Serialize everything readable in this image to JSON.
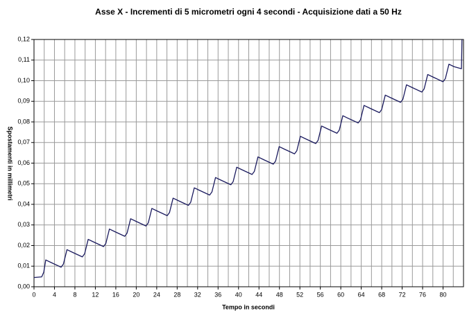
{
  "chart_data": {
    "type": "line",
    "title": "Asse X - Incrementi di 5 micrometri ogni 4 secondi - Acquisizione dati a 50 Hz",
    "x_label": "Tempo in secondi",
    "y_label": "Spostamenti in millimetri",
    "x": [
      0,
      1.5,
      1.9,
      2.3,
      3.3,
      5.3,
      5.75,
      6.45,
      7.45,
      9.45,
      9.9,
      10.6,
      11.6,
      13.6,
      14.05,
      14.75,
      15.75,
      17.75,
      18.2,
      18.9,
      19.9,
      21.9,
      22.35,
      23.05,
      24.05,
      26.05,
      26.5,
      27.2,
      28.2,
      30.2,
      30.65,
      31.35,
      32.35,
      34.35,
      34.8,
      35.5,
      36.5,
      38.5,
      38.95,
      39.65,
      40.65,
      42.65,
      43.1,
      43.8,
      44.8,
      46.8,
      47.25,
      47.95,
      48.95,
      50.95,
      51.4,
      52.1,
      53.1,
      55.1,
      55.55,
      56.25,
      57.25,
      59.25,
      59.7,
      60.4,
      61.4,
      63.4,
      63.85,
      64.55,
      65.55,
      67.55,
      68.0,
      68.7,
      69.7,
      71.7,
      72.15,
      72.85,
      73.85,
      75.85,
      76.3,
      77.0,
      78.0,
      80.0,
      80.45,
      81.15,
      82.15,
      83.6,
      83.7
    ],
    "series": [
      {
        "name": "Asse X",
        "color": "#1a1a5e",
        "values": [
          0.0045,
          0.0048,
          0.007,
          0.013,
          0.0118,
          0.0095,
          0.011,
          0.018,
          0.0168,
          0.0145,
          0.016,
          0.023,
          0.0218,
          0.0195,
          0.021,
          0.028,
          0.0268,
          0.0245,
          0.026,
          0.033,
          0.0318,
          0.0295,
          0.031,
          0.038,
          0.0368,
          0.0345,
          0.036,
          0.043,
          0.0418,
          0.0395,
          0.041,
          0.048,
          0.0468,
          0.0445,
          0.046,
          0.053,
          0.0518,
          0.0495,
          0.051,
          0.058,
          0.0568,
          0.0545,
          0.056,
          0.063,
          0.0618,
          0.0595,
          0.061,
          0.068,
          0.0668,
          0.0645,
          0.066,
          0.073,
          0.0718,
          0.0695,
          0.071,
          0.078,
          0.0768,
          0.0745,
          0.076,
          0.083,
          0.0818,
          0.0795,
          0.081,
          0.088,
          0.0868,
          0.0845,
          0.086,
          0.093,
          0.0918,
          0.0895,
          0.091,
          0.098,
          0.0968,
          0.0945,
          0.096,
          0.103,
          0.1018,
          0.0995,
          0.101,
          0.108,
          0.1068,
          0.1058,
          0.12
        ]
      }
    ],
    "xlim": [
      0,
      84
    ],
    "xticks": [
      0,
      4,
      8,
      12,
      16,
      20,
      24,
      28,
      32,
      36,
      40,
      44,
      48,
      52,
      56,
      60,
      64,
      68,
      72,
      76,
      80
    ],
    "xminorticks": [
      2,
      6,
      10,
      14,
      18,
      22,
      26,
      30,
      34,
      38,
      42,
      46,
      50,
      54,
      58,
      62,
      66,
      70,
      74,
      78,
      82
    ],
    "ylim": [
      0,
      0.12
    ],
    "yticks": [
      {
        "value": 0,
        "label": "0,00"
      },
      {
        "value": 0.01,
        "label": "0,01"
      },
      {
        "value": 0.02,
        "label": "0,02"
      },
      {
        "value": 0.03,
        "label": "0,03"
      },
      {
        "value": 0.04,
        "label": "0,04"
      },
      {
        "value": 0.05,
        "label": "0,05"
      },
      {
        "value": 0.06,
        "label": "0,06"
      },
      {
        "value": 0.07,
        "label": "0,07"
      },
      {
        "value": 0.08,
        "label": "0,08"
      },
      {
        "value": 0.09,
        "label": "0,09"
      },
      {
        "value": 0.1,
        "label": "0,10"
      },
      {
        "value": 0.11,
        "label": "0,11"
      },
      {
        "value": 0.12,
        "label": "0,12"
      }
    ],
    "grid": true
  }
}
